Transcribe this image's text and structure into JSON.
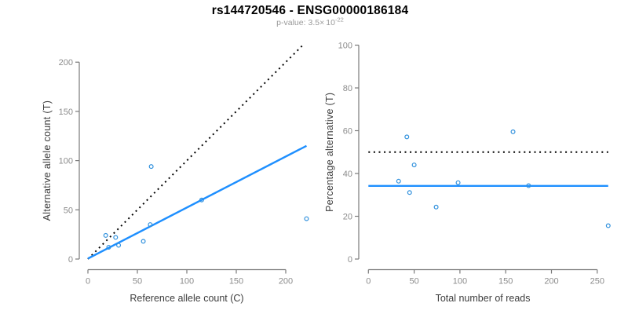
{
  "header": {
    "title": "rs144720546 - ENSG00000186184",
    "pvalue_label": "p-value:",
    "pvalue_mantissa": "3.5",
    "pvalue_times": "×",
    "pvalue_base": "10",
    "pvalue_exponent": "-22"
  },
  "colors": {
    "regression_blue": "#1e8fff",
    "point_blue": "#3191dd",
    "dashed_black": "#000000",
    "axis_line": "#7a7a7a",
    "tick_label": "#8c8c8c",
    "axis_title": "#3d3d3d"
  },
  "chart_data": [
    {
      "name": "allele-count-scatter",
      "type": "scatter",
      "title": "",
      "xlabel": "Reference allele count (C)",
      "ylabel": "Alternative allele count (T)",
      "xticks": [
        0,
        50,
        100,
        150,
        200
      ],
      "yticks": [
        0,
        50,
        100,
        150,
        200
      ],
      "xlim": [
        0,
        225
      ],
      "ylim": [
        0,
        219
      ],
      "grid": false,
      "legend": "none",
      "points": [
        [
          18,
          24
        ],
        [
          28,
          22
        ],
        [
          21,
          12
        ],
        [
          31,
          14
        ],
        [
          56,
          18
        ],
        [
          63,
          35
        ],
        [
          64,
          94
        ],
        [
          115,
          60
        ],
        [
          221,
          41
        ]
      ],
      "lines": [
        {
          "name": "identity-dashed-line",
          "style": "dotted",
          "color_key": "dashed_black",
          "x1": 0,
          "y1": 0,
          "x2": 218.5,
          "y2": 218.5
        },
        {
          "name": "regression-line",
          "style": "solid",
          "color_key": "regression_blue",
          "x1": 0,
          "y1": 0.5,
          "x2": 221,
          "y2": 115
        }
      ]
    },
    {
      "name": "percentage-scatter",
      "type": "scatter",
      "title": "",
      "xlabel": "Total number of reads",
      "ylabel": "Percentage alternative (T)",
      "xticks": [
        0,
        50,
        100,
        150,
        200,
        250
      ],
      "yticks": [
        0,
        20,
        40,
        60,
        80,
        100
      ],
      "xlim": [
        0,
        265
      ],
      "ylim": [
        0,
        100
      ],
      "grid": false,
      "legend": "none",
      "points": [
        [
          42,
          57.1
        ],
        [
          50,
          44.0
        ],
        [
          33,
          36.4
        ],
        [
          45,
          31.1
        ],
        [
          74,
          24.3
        ],
        [
          98,
          35.7
        ],
        [
          158,
          59.5
        ],
        [
          175,
          34.3
        ],
        [
          262,
          15.6
        ]
      ],
      "lines": [
        {
          "name": "fifty-percent-dashed-line",
          "style": "dotted",
          "color_key": "dashed_black",
          "x1": 0,
          "y1": 50,
          "x2": 262,
          "y2": 50
        },
        {
          "name": "mean-percentage-line",
          "style": "solid",
          "color_key": "regression_blue",
          "x1": 0,
          "y1": 34.2,
          "x2": 262,
          "y2": 34.2
        }
      ]
    }
  ]
}
